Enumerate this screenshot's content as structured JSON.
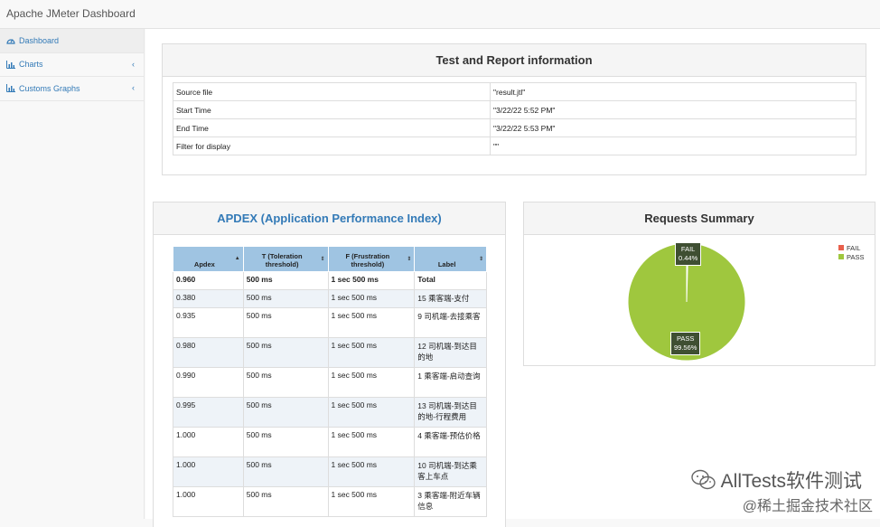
{
  "app": {
    "title": "Apache JMeter Dashboard"
  },
  "sidebar": {
    "items": [
      {
        "label": "Dashboard",
        "icon": "dashboard-icon"
      },
      {
        "label": "Charts",
        "icon": "bar-chart-icon",
        "chevron": "‹"
      },
      {
        "label": "Customs Graphs",
        "icon": "bar-chart-icon",
        "chevron": "‹"
      }
    ]
  },
  "info": {
    "title": "Test and Report information",
    "rows": [
      {
        "label": "Source file",
        "value": "\"result.jtl\""
      },
      {
        "label": "Start Time",
        "value": "\"3/22/22 5:52 PM\""
      },
      {
        "label": "End Time",
        "value": "\"3/22/22 5:53 PM\""
      },
      {
        "label": "Filter for display",
        "value": "\"\""
      }
    ]
  },
  "apdex": {
    "title": "APDEX (Application Performance Index)",
    "headers": [
      "Apdex",
      "T (Toleration threshold)",
      "F (Frustration threshold)",
      "Label"
    ],
    "header_lines": [
      [
        "Apdex"
      ],
      [
        "T (Toleration",
        "threshold)"
      ],
      [
        "F (Frustration",
        "threshold)"
      ],
      [
        "Label"
      ]
    ],
    "sort_glyphs": [
      "▲",
      "⇕",
      "⇕",
      "⇕"
    ],
    "rows": [
      [
        "0.960",
        "500 ms",
        "1 sec 500 ms",
        "Total"
      ],
      [
        "0.380",
        "500 ms",
        "1 sec 500 ms",
        "15 乘客端-支付"
      ],
      [
        "0.935",
        "500 ms",
        "1 sec 500 ms",
        "9 司机端-去接乘客"
      ],
      [
        "0.980",
        "500 ms",
        "1 sec 500 ms",
        "12 司机端-到达目的地"
      ],
      [
        "0.990",
        "500 ms",
        "1 sec 500 ms",
        "1 乘客端-启动查询"
      ],
      [
        "0.995",
        "500 ms",
        "1 sec 500 ms",
        "13 司机端-到达目的地-行程费用"
      ],
      [
        "1.000",
        "500 ms",
        "1 sec 500 ms",
        "4 乘客端-预估价格"
      ],
      [
        "1.000",
        "500 ms",
        "1 sec 500 ms",
        "10 司机端-到达乘客上车点"
      ],
      [
        "1.000",
        "500 ms",
        "1 sec 500 ms",
        "3 乘客端-附近车辆信息"
      ]
    ]
  },
  "requests": {
    "title": "Requests Summary",
    "legend": [
      {
        "name": "FAIL",
        "color": "#e8604c"
      },
      {
        "name": "PASS",
        "color": "#9fc73e"
      }
    ]
  },
  "chart_data": {
    "type": "pie",
    "title": "Requests Summary",
    "categories": [
      "FAIL",
      "PASS"
    ],
    "values": [
      0.44,
      99.56
    ],
    "labels": [
      "0.44%",
      "99.56%"
    ],
    "colors": [
      "#e8604c",
      "#9fc73e"
    ],
    "legend": "top-right"
  },
  "watermark": {
    "text": "AllTests软件测试",
    "sub": "@稀土掘金技术社区"
  }
}
